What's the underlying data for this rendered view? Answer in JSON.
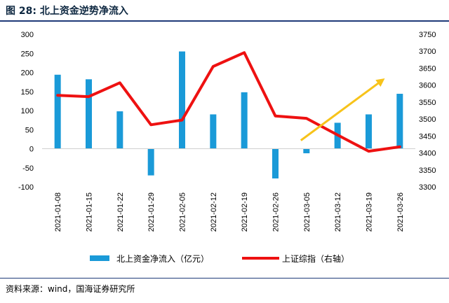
{
  "header": {
    "title": "图 28:  北上资金逆势净流入"
  },
  "footer": {
    "source": "资料来源：wind，国海证券研究所"
  },
  "colors": {
    "bar": "#1a9ad8",
    "line": "#ee1111",
    "arrow": "#f7c31a",
    "title_rule": "#1f3a78"
  },
  "chart_data": {
    "type": "bar+line",
    "categories": [
      "2021-01-08",
      "2021-01-15",
      "2021-01-22",
      "2021-01-29",
      "2021-02-05",
      "2021-02-12",
      "2021-02-19",
      "2021-02-26",
      "2021-03-05",
      "2021-03-12",
      "2021-03-19",
      "2021-03-26"
    ],
    "series": [
      {
        "name": "北上资金净流入（亿元）",
        "type": "bar",
        "axis": "left",
        "values": [
          194,
          182,
          98,
          -70,
          255,
          90,
          148,
          -78,
          -12,
          68,
          90,
          144
        ]
      },
      {
        "name": "上证综指（右轴）",
        "type": "line",
        "axis": "right",
        "values": [
          3570,
          3566,
          3607,
          3483,
          3497,
          3655,
          3696,
          3509,
          3502,
          3453,
          3405,
          3418
        ]
      }
    ],
    "y_left": {
      "min": -100,
      "max": 300,
      "ticks": [
        -100,
        -50,
        0,
        50,
        100,
        150,
        200,
        250,
        300
      ]
    },
    "y_right": {
      "min": 3300,
      "max": 3750,
      "ticks": [
        3300,
        3350,
        3400,
        3450,
        3500,
        3550,
        3600,
        3650,
        3700,
        3750
      ]
    },
    "annotation": {
      "type": "arrow",
      "from": {
        "category": "2021-03-05",
        "y_right": 3437
      },
      "to": {
        "category": "2021-03-19",
        "y_right": 3620
      }
    },
    "grid": false,
    "legend": "bottom-center"
  }
}
